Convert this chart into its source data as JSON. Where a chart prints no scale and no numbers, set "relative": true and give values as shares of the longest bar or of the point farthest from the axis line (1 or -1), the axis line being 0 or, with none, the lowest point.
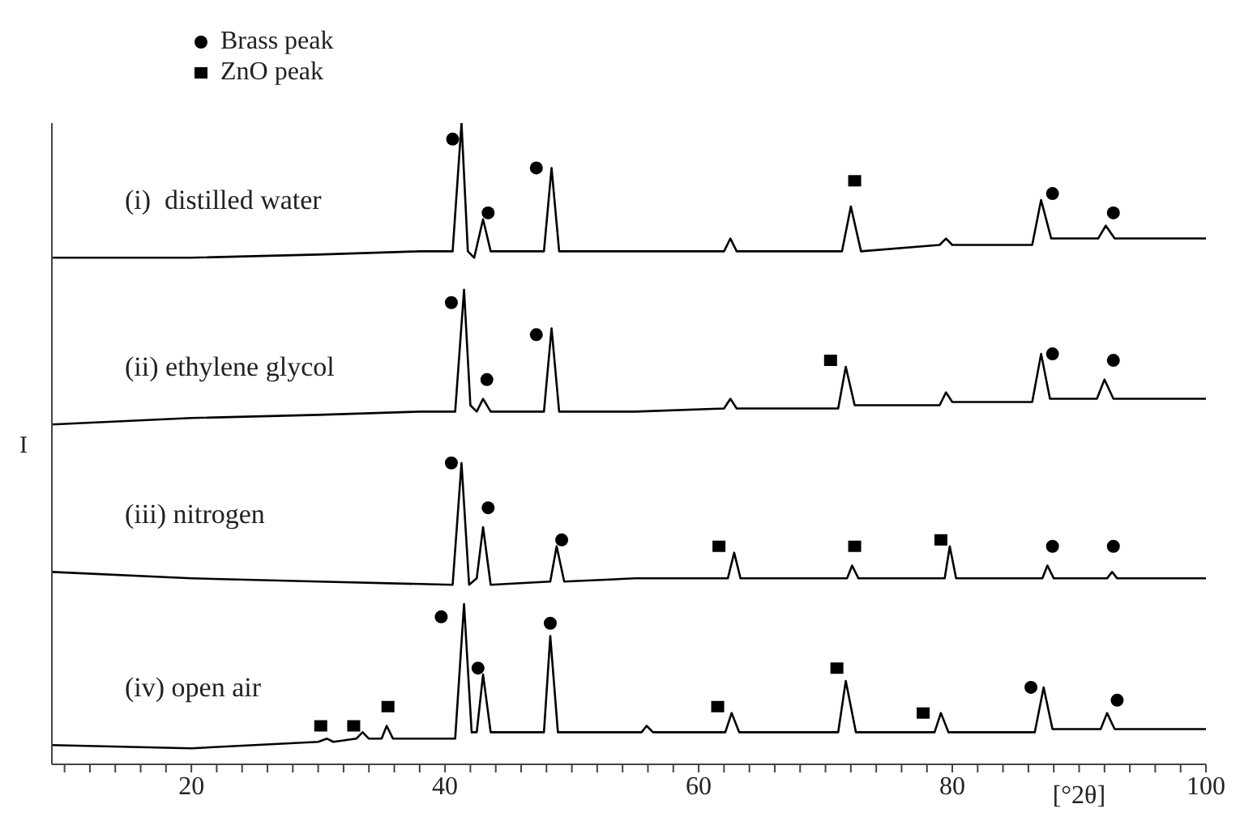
{
  "chart_data": {
    "type": "line",
    "relative": true,
    "ylabel": "I",
    "legend": "top",
    "line_style": "solid",
    "marker": "none",
    "xlim": [
      9,
      100
    ],
    "xlabel": "[°2θ]",
    "xticks": [
      {
        "value": 10,
        "label": null
      },
      {
        "value": 12,
        "label": null
      },
      {
        "value": 14,
        "label": null
      },
      {
        "value": 16,
        "label": null
      },
      {
        "value": 18,
        "label": null
      },
      20,
      {
        "value": 22,
        "label": null
      },
      {
        "value": 24,
        "label": null
      },
      {
        "value": 26,
        "label": null
      },
      {
        "value": 28,
        "label": null
      },
      {
        "value": 30,
        "label": null
      },
      {
        "value": 32,
        "label": null
      },
      {
        "value": 34,
        "label": null
      },
      {
        "value": 36,
        "label": null
      },
      {
        "value": 38,
        "label": null
      },
      40,
      {
        "value": 42,
        "label": null
      },
      {
        "value": 44,
        "label": null
      },
      {
        "value": 46,
        "label": null
      },
      {
        "value": 48,
        "label": null
      },
      {
        "value": 50,
        "label": null
      },
      {
        "value": 52,
        "label": null
      },
      {
        "value": 54,
        "label": null
      },
      {
        "value": 56,
        "label": null
      },
      {
        "value": 58,
        "label": null
      },
      60,
      {
        "value": 62,
        "label": null
      },
      {
        "value": 64,
        "label": null
      },
      {
        "value": 66,
        "label": null
      },
      {
        "value": 68,
        "label": null
      },
      {
        "value": 70,
        "label": null
      },
      {
        "value": 72,
        "label": null
      },
      {
        "value": 74,
        "label": null
      },
      {
        "value": 76,
        "label": null
      },
      {
        "value": 78,
        "label": null
      },
      80,
      {
        "value": 82,
        "label": null
      },
      {
        "value": 84,
        "label": null
      },
      {
        "value": 86,
        "label": null
      },
      {
        "value": 88,
        "label": null
      },
      {
        "value": 90,
        "label": null
      },
      {
        "value": 92,
        "label": null
      },
      {
        "value": 94,
        "label": null
      },
      {
        "value": 96,
        "label": null
      },
      {
        "value": 98,
        "label": null
      },
      100
    ],
    "series": [
      {
        "name": "(i)  distilled water",
        "color": "#000000",
        "x": [
          9,
          20,
          30,
          38,
          40.6,
          41.3,
          41.8,
          42.3,
          43,
          43.6,
          47.8,
          48.4,
          49,
          55,
          62,
          62.5,
          63,
          71.3,
          72.0,
          72.8,
          79,
          79.5,
          80,
          86.3,
          87.0,
          87.8,
          91.5,
          92.1,
          92.8,
          100
        ],
        "values": [
          0.79,
          0.79,
          0.795,
          0.8,
          0.8,
          1.0,
          0.8,
          0.79,
          0.85,
          0.8,
          0.8,
          0.93,
          0.8,
          0.8,
          0.8,
          0.82,
          0.8,
          0.8,
          0.87,
          0.8,
          0.81,
          0.82,
          0.81,
          0.81,
          0.88,
          0.82,
          0.82,
          0.84,
          0.82,
          0.82
        ]
      },
      {
        "name": "(ii) ethylene glycol",
        "color": "#000000",
        "x": [
          9,
          20,
          30,
          38,
          40.8,
          41.5,
          42.0,
          42.5,
          43,
          43.6,
          47.8,
          48.4,
          49,
          55,
          62,
          62.5,
          63,
          71,
          71.6,
          72.3,
          79,
          79.5,
          80,
          86.3,
          87.0,
          87.7,
          91.4,
          92.0,
          92.7,
          100
        ],
        "values": [
          0.53,
          0.54,
          0.545,
          0.55,
          0.55,
          0.74,
          0.56,
          0.55,
          0.57,
          0.55,
          0.55,
          0.68,
          0.55,
          0.55,
          0.555,
          0.57,
          0.555,
          0.555,
          0.62,
          0.56,
          0.56,
          0.58,
          0.565,
          0.565,
          0.64,
          0.57,
          0.57,
          0.6,
          0.57,
          0.57
        ]
      },
      {
        "name": "(iii) nitrogen",
        "color": "#000000",
        "x": [
          9,
          20,
          30,
          40.6,
          41.3,
          41.9,
          42.5,
          43,
          43.6,
          48.3,
          48.8,
          49.4,
          55,
          62.3,
          62.8,
          63.3,
          71.7,
          72.1,
          72.6,
          79.4,
          79.8,
          80.3,
          87.1,
          87.5,
          88,
          92.2,
          92.6,
          93,
          100
        ],
        "values": [
          0.3,
          0.29,
          0.285,
          0.28,
          0.47,
          0.28,
          0.29,
          0.37,
          0.28,
          0.285,
          0.34,
          0.285,
          0.29,
          0.29,
          0.33,
          0.29,
          0.29,
          0.31,
          0.29,
          0.29,
          0.34,
          0.29,
          0.29,
          0.31,
          0.29,
          0.29,
          0.3,
          0.29,
          0.29
        ]
      },
      {
        "name": "(iv) open air",
        "color": "#000000",
        "x": [
          9,
          20,
          30,
          30.7,
          31.2,
          33,
          33.5,
          34,
          35,
          35.4,
          35.9,
          40.8,
          41.5,
          42.1,
          42.5,
          43,
          43.6,
          47.8,
          48.3,
          48.9,
          55.5,
          55.9,
          56.4,
          62.1,
          62.6,
          63.2,
          71.0,
          71.6,
          72.4,
          78.6,
          79.1,
          79.7,
          86.5,
          87.2,
          87.9,
          91.7,
          92.2,
          92.8,
          100
        ],
        "values": [
          0.03,
          0.025,
          0.035,
          0.04,
          0.035,
          0.04,
          0.05,
          0.04,
          0.04,
          0.06,
          0.04,
          0.04,
          0.25,
          0.05,
          0.05,
          0.14,
          0.05,
          0.05,
          0.2,
          0.05,
          0.05,
          0.06,
          0.05,
          0.05,
          0.08,
          0.05,
          0.05,
          0.13,
          0.05,
          0.05,
          0.08,
          0.05,
          0.05,
          0.12,
          0.055,
          0.055,
          0.08,
          0.055,
          0.055
        ]
      },
      {
        "name": "Brass peak",
        "type": "scatter",
        "marker": "circle",
        "color": "#000000",
        "x": [
          40.6,
          43.4,
          47.2,
          87.9,
          92.7,
          40.5,
          43.3,
          47.2,
          87.9,
          92.7,
          40.5,
          43.4,
          49.2,
          87.9,
          92.7,
          39.7,
          42.6,
          48.3,
          86.2,
          93.0
        ],
        "values": [
          0.975,
          0.86,
          0.93,
          0.89,
          0.86,
          0.72,
          0.6,
          0.67,
          0.64,
          0.63,
          0.47,
          0.4,
          0.35,
          0.34,
          0.34,
          0.23,
          0.15,
          0.22,
          0.12,
          0.1
        ]
      },
      {
        "name": "ZnO peak",
        "type": "scatter",
        "marker": "square",
        "color": "#000000",
        "x": [
          72.3,
          70.4,
          61.6,
          72.3,
          79.1,
          30.2,
          32.8,
          35.5,
          61.5,
          70.9,
          77.7
        ],
        "values": [
          0.91,
          0.63,
          0.34,
          0.34,
          0.35,
          0.06,
          0.06,
          0.09,
          0.09,
          0.15,
          0.08
        ]
      }
    ]
  }
}
